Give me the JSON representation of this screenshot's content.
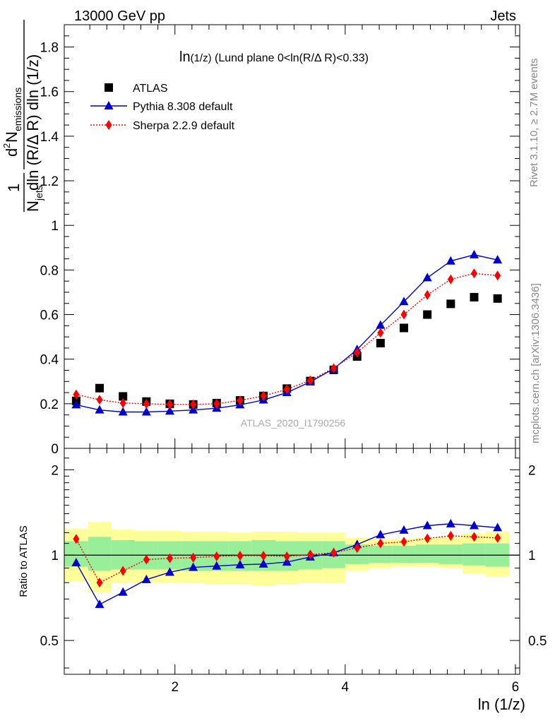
{
  "header": {
    "left": "13000 GeV pp",
    "right": "Jets"
  },
  "side_labels": {
    "rivet": "Rivet 3.1.10, ≥ 2.7M events",
    "mcplots": "mcplots.cern.ch [arXiv:1306.3436]"
  },
  "watermark": "ATLAS_2020_I1790256",
  "chart_data": [
    {
      "type": "scatter",
      "panel": "main",
      "title": "ln(1/z) (Lund plane 0<ln(R/Δ R)<0.33)",
      "xlabel": "ln (1/z)",
      "ylabel": "d² N_emissions / (N_jets dln (R/Δ R) dln (1/z))",
      "xlim": [
        0.7,
        6.05
      ],
      "ylim": [
        0,
        1.9
      ],
      "yticks": [
        0,
        0.2,
        0.4,
        0.6,
        0.8,
        1,
        1.2,
        1.4,
        1.6,
        1.8
      ],
      "ytick_labels": [
        "0",
        "0.2",
        "0.4",
        "0.6",
        "0.8",
        "1",
        "1.2",
        "1.4",
        "1.6",
        "1.8"
      ],
      "legend_position": "top-left",
      "x": [
        0.84,
        1.115,
        1.39,
        1.665,
        1.94,
        2.215,
        2.49,
        2.765,
        3.04,
        3.315,
        3.59,
        3.865,
        4.14,
        4.415,
        4.69,
        4.965,
        5.24,
        5.515,
        5.79
      ],
      "series": [
        {
          "name": "ATLAS",
          "style": "square",
          "color": "#000000",
          "values": [
            0.213,
            0.27,
            0.233,
            0.21,
            0.2,
            0.197,
            0.203,
            0.215,
            0.235,
            0.268,
            0.302,
            0.352,
            0.412,
            0.472,
            0.54,
            0.6,
            0.648,
            0.678,
            0.672
          ]
        },
        {
          "name": "Pythia 8.308 default",
          "style": "triangle-line",
          "color": "#0000cc",
          "values": [
            0.195,
            0.172,
            0.163,
            0.163,
            0.167,
            0.172,
            0.18,
            0.195,
            0.217,
            0.25,
            0.298,
            0.357,
            0.443,
            0.552,
            0.658,
            0.765,
            0.84,
            0.868,
            0.845
          ]
        },
        {
          "name": "Sherpa 2.2.9 default",
          "style": "diamond-dotted",
          "color": "#ff0000",
          "values": [
            0.242,
            0.218,
            0.203,
            0.2,
            0.197,
            0.197,
            0.2,
            0.215,
            0.235,
            0.265,
            0.305,
            0.36,
            0.43,
            0.518,
            0.6,
            0.688,
            0.758,
            0.785,
            0.775
          ]
        }
      ]
    },
    {
      "type": "scatter",
      "panel": "ratio",
      "ylabel": "Ratio to ATLAS",
      "xlabel": "ln (1/z)",
      "xlim": [
        0.7,
        6.05
      ],
      "ylim": [
        0.38,
        2.38
      ],
      "xticks": [
        2,
        4,
        6
      ],
      "xtick_labels": [
        "2",
        "4",
        "6"
      ],
      "yticks": [
        0.5,
        1,
        2
      ],
      "ytick_labels": [
        "0.5",
        "1",
        "2"
      ],
      "x": [
        0.84,
        1.115,
        1.39,
        1.665,
        1.94,
        2.215,
        2.49,
        2.765,
        3.04,
        3.315,
        3.59,
        3.865,
        4.14,
        4.415,
        4.69,
        4.965,
        5.24,
        5.515,
        5.79
      ],
      "bin_edges": [
        0.7,
        0.98,
        1.25,
        1.53,
        1.8,
        2.08,
        2.35,
        2.63,
        2.9,
        3.18,
        3.45,
        3.73,
        4.0,
        4.28,
        4.55,
        4.83,
        5.1,
        5.38,
        5.65,
        5.93
      ],
      "bands": [
        {
          "name": "total uncertainty",
          "color": "#ffff99",
          "lo": [
            0.81,
            0.74,
            0.8,
            0.8,
            0.8,
            0.8,
            0.79,
            0.79,
            0.78,
            0.79,
            0.8,
            0.8,
            0.88,
            0.9,
            0.91,
            0.91,
            0.9,
            0.86,
            0.84
          ],
          "hi": [
            1.24,
            1.31,
            1.23,
            1.22,
            1.22,
            1.21,
            1.21,
            1.2,
            1.21,
            1.21,
            1.2,
            1.2,
            1.15,
            1.14,
            1.14,
            1.15,
            1.16,
            1.19,
            1.21
          ]
        },
        {
          "name": "statistical uncertainty",
          "color": "#99ee99",
          "lo": [
            0.91,
            0.88,
            0.89,
            0.89,
            0.89,
            0.88,
            0.88,
            0.88,
            0.88,
            0.88,
            0.89,
            0.9,
            0.93,
            0.94,
            0.94,
            0.94,
            0.93,
            0.92,
            0.91
          ],
          "hi": [
            1.12,
            1.16,
            1.13,
            1.12,
            1.12,
            1.12,
            1.12,
            1.12,
            1.13,
            1.12,
            1.12,
            1.12,
            1.09,
            1.08,
            1.08,
            1.09,
            1.09,
            1.1,
            1.1
          ]
        }
      ],
      "series": [
        {
          "name": "Pythia 8.308 default",
          "style": "triangle-line",
          "color": "#0000cc",
          "values": [
            0.94,
            0.67,
            0.74,
            0.82,
            0.87,
            0.905,
            0.915,
            0.925,
            0.93,
            0.945,
            0.985,
            1.02,
            1.09,
            1.18,
            1.225,
            1.27,
            1.29,
            1.27,
            1.25
          ]
        },
        {
          "name": "Sherpa 2.2.9 default",
          "style": "diamond-dotted",
          "color": "#ff0000",
          "values": [
            1.14,
            0.8,
            0.88,
            0.965,
            0.975,
            0.98,
            0.99,
            0.995,
            0.995,
            0.99,
            1.005,
            1.02,
            1.06,
            1.1,
            1.115,
            1.145,
            1.17,
            1.16,
            1.15
          ]
        }
      ]
    }
  ]
}
